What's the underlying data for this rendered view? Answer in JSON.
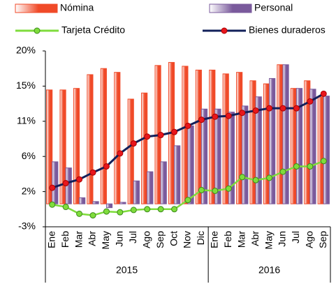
{
  "chart_data": {
    "type": "bar_line",
    "categories": [
      "Ene",
      "Feb",
      "Mar",
      "Abr",
      "May",
      "Jun",
      "Jul",
      "Ago",
      "Sep",
      "Oct",
      "Nov",
      "Dic",
      "Ene",
      "Feb",
      "Mar",
      "Abr",
      "May",
      "Jun",
      "Jul",
      "Ago",
      "Sep"
    ],
    "x_groups": [
      "2015",
      "2016"
    ],
    "series": [
      {
        "name": "Nómina",
        "kind": "bar",
        "color": "#f04a28",
        "values": [
          14.9,
          14.9,
          15.1,
          16.9,
          17.7,
          17.2,
          13.7,
          14.5,
          18.1,
          18.5,
          18.0,
          17.5,
          17.5,
          17.0,
          17.2,
          16.1,
          15.7,
          18.2,
          15.1,
          16.1,
          14.0
        ]
      },
      {
        "name": "Personal",
        "kind": "bar",
        "color": "#7a5a9c",
        "values": [
          5.5,
          4.7,
          0.8,
          0.3,
          -0.5,
          0.2,
          3.0,
          4.2,
          5.5,
          7.6,
          10.2,
          12.4,
          12.4,
          12.0,
          12.8,
          14.0,
          16.4,
          18.2,
          15.1,
          15.0,
          14.1
        ]
      },
      {
        "name": "Tarjeta Crédito",
        "kind": "line",
        "color": "#7fdc3c",
        "line_color": "#7fdc3c",
        "values": [
          -0.1,
          -0.4,
          -1.3,
          -1.5,
          -1.0,
          -1.1,
          -0.8,
          -0.7,
          -0.7,
          -0.7,
          0.5,
          1.8,
          1.7,
          2.0,
          3.5,
          3.1,
          3.4,
          4.2,
          4.9,
          4.9,
          5.6
        ]
      },
      {
        "name": "Bienes duraderos",
        "kind": "line",
        "color": "#e8161c",
        "line_color": "#12205a",
        "values": [
          2.1,
          2.7,
          3.2,
          4.1,
          4.9,
          6.6,
          7.9,
          8.8,
          9.0,
          9.4,
          10.2,
          11.0,
          11.4,
          11.5,
          11.9,
          12.2,
          12.5,
          12.5,
          12.5,
          13.4,
          14.4
        ]
      }
    ],
    "ylim": [
      -3,
      20
    ],
    "yticks": [
      {
        "value": -3,
        "label": "-3%"
      },
      {
        "value": 1.6,
        "label": "2%"
      },
      {
        "value": 6.2,
        "label": "6%"
      },
      {
        "value": 10.8,
        "label": "11%"
      },
      {
        "value": 15.4,
        "label": "15%"
      },
      {
        "value": 20,
        "label": "20%"
      }
    ],
    "grid": false
  }
}
